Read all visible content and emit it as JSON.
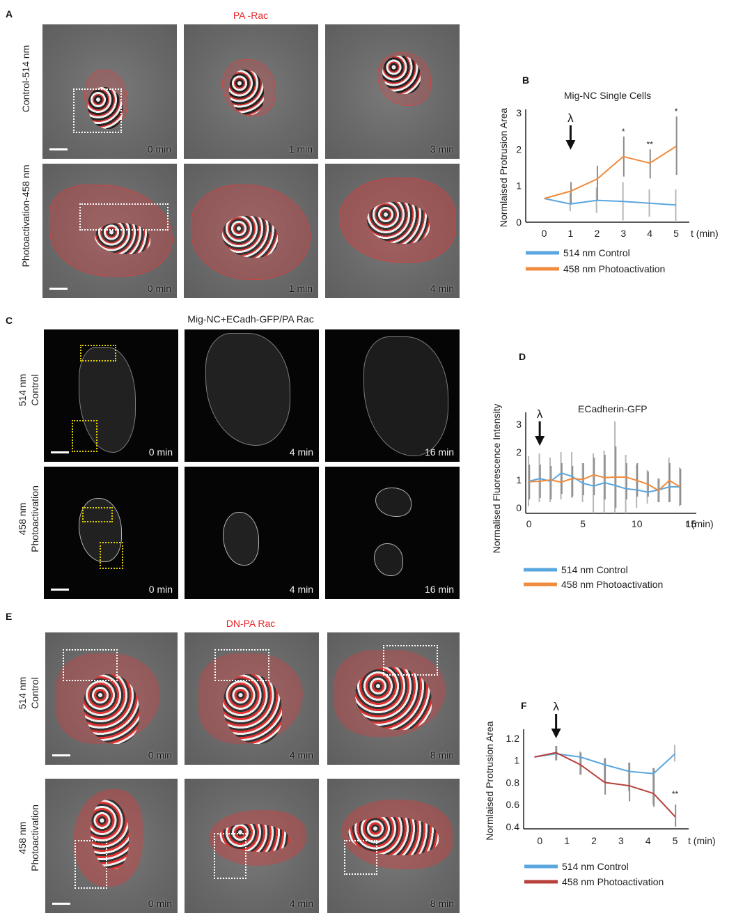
{
  "figure": {
    "panel_A": {
      "letter": "A",
      "title": "PA -Rac",
      "rows": [
        {
          "label": "Control-514 nm",
          "times": [
            "0 min",
            "1 min",
            "3 min"
          ]
        },
        {
          "label": "Photoactivation-458 nm",
          "times": [
            "0 min",
            "1 min",
            "4 min"
          ]
        }
      ]
    },
    "panel_C": {
      "letter": "C",
      "title": "Mig-NC+ECadh-GFP/PA Rac",
      "rows": [
        {
          "label": "514 nm\nControl",
          "times": [
            "0 min",
            "4 min",
            "16 min"
          ]
        },
        {
          "label": "458 nm\nPhotoactivation",
          "times": [
            "0 min",
            "4 min",
            "16 min"
          ]
        }
      ]
    },
    "panel_E": {
      "letter": "E",
      "title": "DN-PA Rac",
      "rows": [
        {
          "label": "514 nm\nControl",
          "times": [
            "0 min",
            "4 min",
            "8 min"
          ]
        },
        {
          "label": "458 nm\nPhotoactivation",
          "times": [
            "0 min",
            "4 min",
            "8 min"
          ]
        }
      ]
    },
    "colors": {
      "control": "#5aa6de",
      "photo_orange": "#f08a3c",
      "photo_red": "#b8403a",
      "title_red": "#e8262a"
    }
  },
  "chart_data": [
    {
      "id": "B",
      "letter": "B",
      "type": "line",
      "title": "Mig-NC Single Cells",
      "xlabel": "t (min)",
      "ylabel": "Normlaised Protrusion Area",
      "x": [
        0,
        1,
        2,
        3,
        4,
        5
      ],
      "xticks": [
        "0",
        "1",
        "2",
        "3",
        "4",
        "5"
      ],
      "yticks": [
        "0",
        "1",
        "2",
        "3"
      ],
      "ylim": [
        0,
        3
      ],
      "xlim": [
        -0.7,
        5.5
      ],
      "annotation_arrow": {
        "symbol": "λ",
        "x": 1
      },
      "significance": [
        {
          "x": 3,
          "label": "*"
        },
        {
          "x": 4,
          "label": "**"
        },
        {
          "x": 5,
          "label": "*"
        }
      ],
      "series": [
        {
          "name": "514 nm Control",
          "color": "#5aa6de",
          "values": [
            0.65,
            0.5,
            0.6,
            0.57,
            0.52,
            0.47
          ],
          "err_low": [
            0.65,
            0.3,
            0.25,
            0.05,
            0.15,
            0.0
          ],
          "err_high": [
            0.65,
            0.8,
            0.95,
            1.1,
            0.9,
            0.9
          ]
        },
        {
          "name": "458 nm Photoactivation",
          "color": "#f08a3c",
          "values": [
            0.65,
            0.85,
            1.18,
            1.8,
            1.62,
            2.08
          ],
          "err_low": [
            0.65,
            0.5,
            0.6,
            1.25,
            1.2,
            1.3
          ],
          "err_high": [
            0.65,
            1.1,
            1.55,
            2.35,
            2.0,
            2.9
          ]
        }
      ],
      "legend": [
        "514 nm Control",
        "458 nm Photoactivation"
      ]
    },
    {
      "id": "D",
      "letter": "D",
      "type": "line",
      "title": "ECadherin-GFP",
      "xlabel": "t (min)",
      "ylabel": "Normalised Fluorescence Intensity",
      "x": [
        0,
        1,
        2,
        3,
        4,
        5,
        6,
        7,
        8,
        9,
        10,
        11,
        12,
        13,
        14
      ],
      "xticks": [
        "0",
        "5",
        "10",
        "15"
      ],
      "xtick_values": [
        0,
        5,
        10,
        15
      ],
      "yticks": [
        "0",
        "1",
        "2",
        "3"
      ],
      "ylim": [
        -0.2,
        3.3
      ],
      "xlim": [
        -0.3,
        15.5
      ],
      "annotation_arrow": {
        "symbol": "λ",
        "x": 1
      },
      "series": [
        {
          "name": "514 nm Control",
          "color": "#5aa6de",
          "values": [
            0.95,
            1.05,
            0.95,
            1.25,
            1.12,
            0.88,
            0.78,
            0.9,
            0.8,
            0.68,
            0.64,
            0.56,
            0.64,
            0.75,
            0.75
          ],
          "err_low": [
            0.05,
            0.2,
            0.2,
            0.3,
            0.35,
            0.2,
            -0.2,
            -0.2,
            -0.2,
            -0.2,
            0.0,
            0.15,
            0.2,
            0.2,
            0.05
          ],
          "err_high": [
            1.85,
            1.95,
            1.8,
            2.0,
            2.0,
            1.6,
            1.95,
            2.05,
            3.1,
            1.9,
            1.55,
            1.35,
            1.05,
            1.8,
            1.45
          ]
        },
        {
          "name": "458 nm Photoactivation",
          "color": "#f08a3c",
          "values": [
            0.93,
            0.95,
            1.0,
            0.92,
            1.05,
            1.02,
            1.18,
            1.08,
            1.1,
            1.1,
            0.98,
            0.85,
            0.62,
            0.98,
            0.75
          ],
          "err_low": [
            0.3,
            0.35,
            0.3,
            0.5,
            0.4,
            0.45,
            0.45,
            0.3,
            0.0,
            0.3,
            0.4,
            0.4,
            0.2,
            0.2,
            0.1
          ],
          "err_high": [
            1.55,
            1.55,
            1.5,
            1.6,
            1.5,
            1.6,
            1.8,
            1.9,
            2.2,
            1.6,
            1.6,
            1.3,
            1.05,
            1.6,
            1.4
          ]
        }
      ],
      "legend": [
        "514 nm Control",
        "458 nm Photoactivation"
      ]
    },
    {
      "id": "F",
      "letter": "F",
      "type": "line",
      "title": "",
      "xlabel": "t (min)",
      "ylabel": "Normlaised Protrusion Area",
      "x": [
        -0.2,
        0.6,
        1.5,
        2.4,
        3.3,
        4.2,
        5.0
      ],
      "xticks": [
        "0",
        "1",
        "2",
        "3",
        "4",
        "5"
      ],
      "xtick_values": [
        0,
        1,
        2,
        3,
        4,
        5
      ],
      "yticks": [
        "0.4",
        "0.6",
        "0.8",
        "1",
        "1.2"
      ],
      "ytick_values": [
        0.4,
        0.6,
        0.8,
        1.0,
        1.2
      ],
      "ylim": [
        0.38,
        1.25
      ],
      "xlim": [
        -0.6,
        5.5
      ],
      "annotation_arrow": {
        "symbol": "λ",
        "x": 0.6
      },
      "significance": [
        {
          "x": 5.0,
          "label": "**"
        }
      ],
      "series": [
        {
          "name": "514 nm Control",
          "color": "#5aa6de",
          "values": [
            1.03,
            1.06,
            1.03,
            0.96,
            0.9,
            0.88,
            1.06
          ],
          "err_low": [
            1.03,
            1.0,
            0.87,
            0.8,
            0.72,
            0.6,
            0.99
          ],
          "err_high": [
            1.03,
            1.13,
            1.08,
            1.02,
            0.98,
            0.93,
            1.14
          ]
        },
        {
          "name": "458 nm Photoactivation",
          "color": "#b8403a",
          "values": [
            1.03,
            1.07,
            0.96,
            0.8,
            0.77,
            0.7,
            0.49
          ],
          "err_low": [
            1.03,
            1.0,
            0.87,
            0.69,
            0.63,
            0.58,
            0.4
          ],
          "err_high": [
            1.03,
            1.13,
            1.07,
            1.02,
            0.98,
            0.93,
            0.6
          ]
        }
      ],
      "legend": [
        "514 nm Control",
        "458 nm Photoactivation"
      ]
    }
  ]
}
